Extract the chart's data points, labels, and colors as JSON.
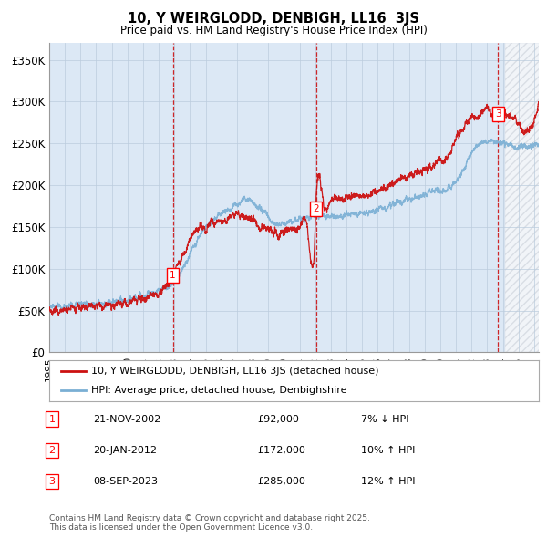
{
  "title": "10, Y WEIRGLODD, DENBIGH, LL16  3JS",
  "subtitle": "Price paid vs. HM Land Registry's House Price Index (HPI)",
  "ylabel_ticks": [
    "£0",
    "£50K",
    "£100K",
    "£150K",
    "£200K",
    "£250K",
    "£300K",
    "£350K"
  ],
  "ytick_values": [
    0,
    50000,
    100000,
    150000,
    200000,
    250000,
    300000,
    350000
  ],
  "ylim": [
    0,
    370000
  ],
  "xlim_start": 1995.0,
  "xlim_end": 2026.3,
  "background_color": "#dce8f5",
  "grid_color": "#bbccdd",
  "hpi_color": "#7aafd4",
  "price_color": "#cc1111",
  "vline_color": "#cc1111",
  "legend_label_price": "10, Y WEIRGLODD, DENBIGH, LL16 3JS (detached house)",
  "legend_label_hpi": "HPI: Average price, detached house, Denbighshire",
  "sales": [
    {
      "num": 1,
      "date_num": 2002.9,
      "price": 92000,
      "date_str": "21-NOV-2002",
      "price_str": "£92,000",
      "hpi_rel": "7% ↓ HPI"
    },
    {
      "num": 2,
      "date_num": 2012.05,
      "price": 172000,
      "date_str": "20-JAN-2012",
      "price_str": "£172,000",
      "hpi_rel": "10% ↑ HPI"
    },
    {
      "num": 3,
      "date_num": 2023.7,
      "price": 285000,
      "date_str": "08-SEP-2023",
      "price_str": "£285,000",
      "hpi_rel": "12% ↑ HPI"
    }
  ],
  "footer": "Contains HM Land Registry data © Crown copyright and database right 2025.\nThis data is licensed under the Open Government Licence v3.0.",
  "hatch_region_start": 2024.17,
  "hatch_region_end": 2026.5,
  "hpi_keypoints_x": [
    1995.0,
    1995.5,
    1996.0,
    1996.5,
    1997.0,
    1997.5,
    1998.0,
    1998.5,
    1999.0,
    1999.5,
    2000.0,
    2000.5,
    2001.0,
    2001.5,
    2002.0,
    2002.5,
    2003.0,
    2003.5,
    2004.0,
    2004.5,
    2005.0,
    2005.5,
    2006.0,
    2006.5,
    2007.0,
    2007.5,
    2008.0,
    2008.5,
    2009.0,
    2009.5,
    2010.0,
    2010.5,
    2011.0,
    2011.5,
    2012.0,
    2012.5,
    2013.0,
    2013.5,
    2014.0,
    2014.5,
    2015.0,
    2015.5,
    2016.0,
    2016.5,
    2017.0,
    2017.5,
    2018.0,
    2018.5,
    2019.0,
    2019.5,
    2020.0,
    2020.5,
    2021.0,
    2021.5,
    2022.0,
    2022.5,
    2023.0,
    2023.5,
    2024.0,
    2024.5,
    2026.0
  ],
  "hpi_keypoints_y": [
    55000,
    54000,
    55000,
    56000,
    57000,
    57500,
    58000,
    59000,
    60000,
    62000,
    63000,
    65000,
    68000,
    71000,
    74000,
    78000,
    85000,
    100000,
    118000,
    135000,
    148000,
    158000,
    165000,
    172000,
    178000,
    182000,
    180000,
    172000,
    160000,
    153000,
    153000,
    158000,
    160000,
    162000,
    163000,
    163000,
    163000,
    164000,
    165000,
    166000,
    167000,
    168000,
    170000,
    173000,
    177000,
    181000,
    183000,
    185000,
    188000,
    192000,
    193000,
    195000,
    205000,
    220000,
    240000,
    248000,
    252000,
    252000,
    250000,
    248000,
    248000
  ],
  "price_keypoints_x": [
    1995.0,
    1995.5,
    1996.0,
    1996.5,
    1997.0,
    1997.5,
    1998.0,
    1998.5,
    1999.0,
    1999.5,
    2000.0,
    2000.5,
    2001.0,
    2001.5,
    2002.0,
    2002.5,
    2002.9,
    2003.0,
    2003.5,
    2004.0,
    2004.5,
    2005.0,
    2005.5,
    2006.0,
    2006.5,
    2007.0,
    2007.5,
    2008.0,
    2008.5,
    2009.0,
    2009.5,
    2010.0,
    2010.5,
    2011.0,
    2011.5,
    2012.0,
    2012.05,
    2012.5,
    2013.0,
    2013.5,
    2014.0,
    2014.5,
    2015.0,
    2015.5,
    2016.0,
    2016.5,
    2017.0,
    2017.5,
    2018.0,
    2018.5,
    2019.0,
    2019.5,
    2020.0,
    2020.5,
    2021.0,
    2021.5,
    2022.0,
    2022.5,
    2023.0,
    2023.5,
    2023.7,
    2024.0,
    2024.5,
    2026.0
  ],
  "price_keypoints_y": [
    51000,
    50000,
    51000,
    52000,
    53000,
    54000,
    55000,
    56000,
    57000,
    58000,
    60000,
    62000,
    65000,
    68000,
    71000,
    80000,
    92000,
    97000,
    115000,
    135000,
    148000,
    150000,
    155000,
    157000,
    162000,
    168000,
    162000,
    158000,
    152000,
    148000,
    143000,
    143000,
    148000,
    148000,
    148000,
    145000,
    172000,
    180000,
    182000,
    183000,
    185000,
    186000,
    187000,
    190000,
    193000,
    198000,
    203000,
    208000,
    212000,
    215000,
    218000,
    223000,
    228000,
    237000,
    255000,
    268000,
    282000,
    285000,
    290000,
    282000,
    285000,
    288000,
    282000,
    278000
  ]
}
